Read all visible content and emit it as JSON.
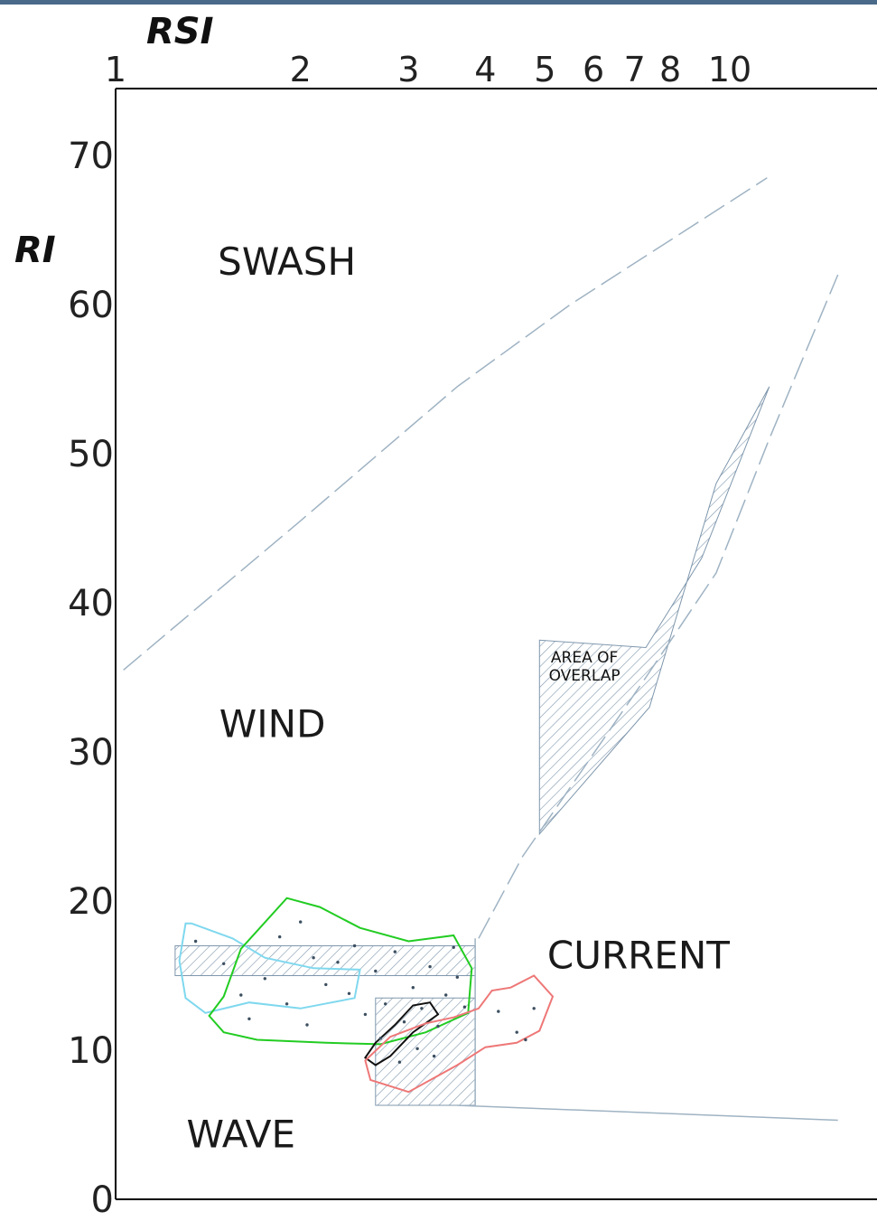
{
  "chart_data": {
    "type": "scatter",
    "title": "",
    "xlabel": "RSI",
    "ylabel": "RI",
    "x_scale": "log",
    "xlim": [
      1,
      15
    ],
    "ylim": [
      0,
      75
    ],
    "x_ticks": [
      "1",
      "2",
      "3",
      "4",
      "5",
      "6",
      "7",
      "8",
      "10"
    ],
    "y_ticks": [
      "0",
      "10",
      "20",
      "30",
      "40",
      "50",
      "60",
      "70"
    ],
    "x_tick_values": [
      1,
      2,
      3,
      4,
      5,
      6,
      7,
      8,
      10
    ],
    "y_tick_values": [
      0,
      10,
      20,
      30,
      40,
      50,
      60,
      70
    ],
    "grid": false,
    "regions": [
      {
        "id": "swash",
        "label": "SWASH",
        "at": [
          1.9,
          62
        ]
      },
      {
        "id": "wind",
        "label": "WIND",
        "at": [
          1.8,
          31
        ]
      },
      {
        "id": "current",
        "label": "CURRENT",
        "at": [
          7.1,
          15.5
        ]
      },
      {
        "id": "wave",
        "label": "WAVE",
        "at": [
          1.6,
          3.5
        ]
      },
      {
        "id": "overlap",
        "label": "AREA OF\nOVERLAP",
        "at": [
          5.8,
          36
        ]
      }
    ],
    "boundaries": [
      {
        "name": "swash-wind",
        "points": [
          [
            1.03,
            35.5
          ],
          [
            2.0,
            45.5
          ],
          [
            3.6,
            54.5
          ],
          [
            5.5,
            60
          ],
          [
            11.5,
            68.5
          ]
        ]
      },
      {
        "name": "wind-current",
        "points": [
          [
            3.9,
            17.5
          ],
          [
            4.6,
            23
          ],
          [
            5.8,
            29
          ],
          [
            7.3,
            35
          ],
          [
            9.5,
            42
          ],
          [
            11.6,
            51
          ],
          [
            15,
            62
          ]
        ]
      },
      {
        "name": "wave-current",
        "points": [
          [
            3.6,
            6.3
          ],
          [
            15,
            5.3
          ]
        ]
      }
    ],
    "hatched_areas": [
      {
        "name": "area-of-overlap",
        "points": [
          [
            4.9,
            24.5
          ],
          [
            7.4,
            33
          ],
          [
            9.5,
            48
          ],
          [
            11.6,
            54.5
          ],
          [
            9.0,
            43
          ],
          [
            7.3,
            37
          ],
          [
            4.9,
            37.5
          ]
        ]
      },
      {
        "name": "band-upper",
        "points": [
          [
            1.25,
            17
          ],
          [
            3.85,
            17
          ],
          [
            3.85,
            15
          ],
          [
            1.25,
            15
          ]
        ]
      },
      {
        "name": "block-lower",
        "points": [
          [
            2.65,
            13.5
          ],
          [
            3.85,
            13.5
          ],
          [
            3.85,
            6.3
          ],
          [
            2.65,
            6.3
          ]
        ]
      }
    ],
    "outlines": [
      {
        "color": "#7fd8ee",
        "name": "light-blue-outline"
      },
      {
        "color": "#22cc22",
        "name": "green-outline"
      },
      {
        "color": "#111111",
        "name": "black-outline"
      },
      {
        "color": "#ee7777",
        "name": "pink-outline"
      }
    ],
    "colors": {
      "boundary": "#9fb3c3",
      "hatch": "#7f97ad",
      "axis": "#000000",
      "top_bar": "#4a6a8a"
    }
  }
}
